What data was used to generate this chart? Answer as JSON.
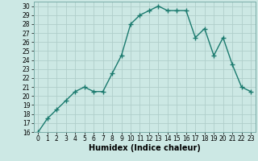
{
  "x": [
    0,
    1,
    2,
    3,
    4,
    5,
    6,
    7,
    8,
    9,
    10,
    11,
    12,
    13,
    14,
    15,
    16,
    17,
    18,
    19,
    20,
    21,
    22,
    23
  ],
  "y": [
    16,
    17.5,
    18.5,
    19.5,
    20.5,
    21,
    20.5,
    20.5,
    22.5,
    24.5,
    28,
    29,
    29.5,
    30,
    29.5,
    29.5,
    29.5,
    26.5,
    27.5,
    24.5,
    26.5,
    23.5,
    21,
    20.5
  ],
  "line_color": "#1a7a6e",
  "marker": "+",
  "marker_size": 4,
  "bg_color": "#cce8e4",
  "grid_color": "#b0ceca",
  "xlabel": "Humidex (Indice chaleur)",
  "xlim": [
    -0.5,
    23.5
  ],
  "ylim": [
    16,
    30.5
  ],
  "yticks": [
    16,
    17,
    18,
    19,
    20,
    21,
    22,
    23,
    24,
    25,
    26,
    27,
    28,
    29,
    30
  ],
  "xticks": [
    0,
    1,
    2,
    3,
    4,
    5,
    6,
    7,
    8,
    9,
    10,
    11,
    12,
    13,
    14,
    15,
    16,
    17,
    18,
    19,
    20,
    21,
    22,
    23
  ],
  "xlabel_fontsize": 7,
  "tick_fontsize": 5.5,
  "line_width": 1.0,
  "marker_color": "#1a7a6e"
}
